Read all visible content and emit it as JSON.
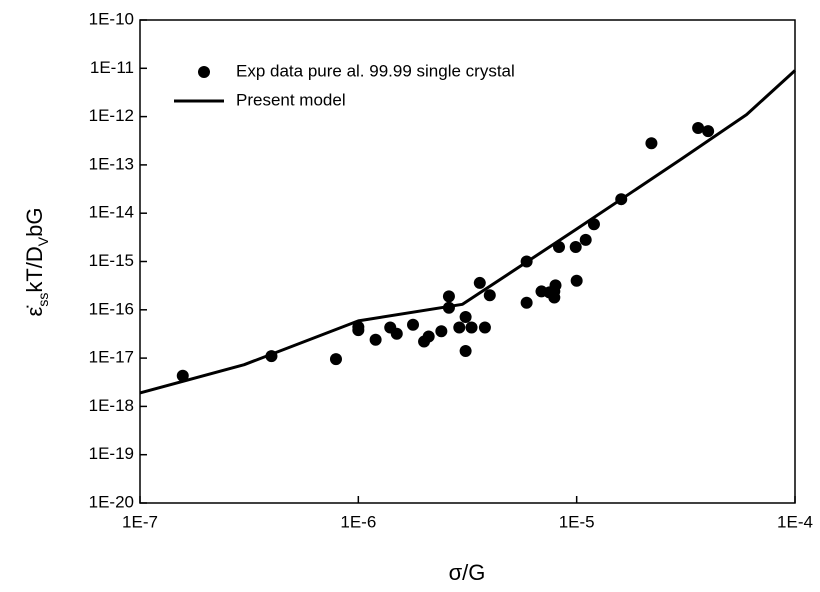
{
  "chart_data": {
    "type": "scatter",
    "xlabel": "σ/G",
    "ylabel_parts": [
      {
        "text": "ε̇"
      },
      {
        "text": "ss",
        "sub": true
      },
      {
        "text": "kT/D"
      },
      {
        "text": "V",
        "sub": true
      },
      {
        "text": "bG"
      }
    ],
    "xlog": true,
    "ylog": true,
    "xlim": [
      1e-07,
      0.0001
    ],
    "ylim": [
      1e-20,
      1e-10
    ],
    "xticks": [
      {
        "value": 1e-07,
        "label": "1E-7"
      },
      {
        "value": 1e-06,
        "label": "1E-6"
      },
      {
        "value": 1e-05,
        "label": "1E-5"
      },
      {
        "value": 0.0001,
        "label": "1E-4"
      }
    ],
    "yticks": [
      {
        "value": 1e-20,
        "label": "1E-20"
      },
      {
        "value": 1e-19,
        "label": "1E-19"
      },
      {
        "value": 1e-18,
        "label": "1E-18"
      },
      {
        "value": 1e-17,
        "label": "1E-17"
      },
      {
        "value": 1e-16,
        "label": "1E-16"
      },
      {
        "value": 1e-15,
        "label": "1E-15"
      },
      {
        "value": 1e-14,
        "label": "1E-14"
      },
      {
        "value": 1e-13,
        "label": "1E-13"
      },
      {
        "value": 1e-12,
        "label": "1E-12"
      },
      {
        "value": 1e-11,
        "label": "1E-11"
      },
      {
        "value": 1e-10,
        "label": "1E-10"
      }
    ],
    "series": [
      {
        "name": "Exp data pure al. 99.99 single crystal",
        "type": "scatter",
        "color": "#000000",
        "x": [
          1.57e-07,
          4e-07,
          7.9e-07,
          1e-06,
          1e-06,
          1.2e-06,
          1.4e-06,
          1.5e-06,
          1.78e-06,
          2e-06,
          2.1e-06,
          2.4e-06,
          2.6e-06,
          2.6e-06,
          2.9e-06,
          3.1e-06,
          3.1e-06,
          3.3e-06,
          3.6e-06,
          3.8e-06,
          4e-06,
          5.9e-06,
          5.9e-06,
          6.9e-06,
          7.5e-06,
          7.9e-06,
          7.9e-06,
          8e-06,
          8.3e-06,
          1e-05,
          9.9e-06,
          1.1e-05,
          1.2e-05,
          1.6e-05,
          2.2e-05,
          3.6e-05,
          4e-05
        ],
        "values": [
          4.3e-18,
          1.1e-17,
          9.5e-18,
          4.4e-17,
          3.8e-17,
          2.4e-17,
          4.3e-17,
          3.2e-17,
          4.9e-17,
          2.2e-17,
          2.8e-17,
          3.6e-17,
          1.9e-16,
          1.1e-16,
          4.3e-17,
          7.1e-17,
          1.4e-17,
          4.3e-17,
          3.6e-16,
          4.3e-17,
          2e-16,
          1e-15,
          1.4e-16,
          2.4e-16,
          2.3e-16,
          1.8e-16,
          2.4e-16,
          3.2e-16,
          2e-15,
          4e-16,
          2e-15,
          2.8e-15,
          5.9e-15,
          1.95e-14,
          2.8e-13,
          5.8e-13,
          5e-13
        ]
      },
      {
        "name": "Present model",
        "type": "line",
        "color": "#000000",
        "x": [
          1e-07,
          3e-07,
          1e-06,
          3e-06,
          1e-05,
          3e-05,
          6e-05,
          0.0001
        ],
        "values": [
          1.9e-18,
          7.3e-18,
          5.9e-17,
          1.3e-16,
          4.7e-15,
          1.3e-13,
          1.1e-12,
          9e-12
        ]
      }
    ]
  }
}
